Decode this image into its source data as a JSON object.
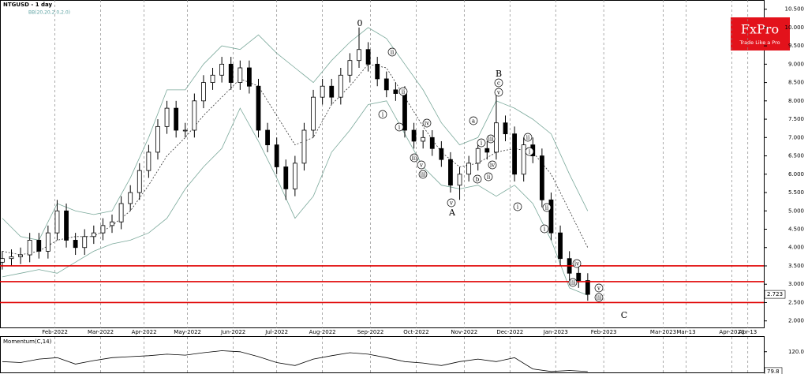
{
  "chart_data": {
    "type": "candlestick",
    "title": "NTGUSD - 1 day",
    "indicator": "BB(20,20,2.0,2.0)",
    "x": [
      1,
      5,
      9,
      13,
      17,
      21,
      25,
      29,
      33,
      37,
      41,
      45,
      49,
      53,
      57,
      61,
      65,
      69,
      73,
      77,
      81,
      85,
      89,
      93,
      97,
      101,
      105,
      109,
      113,
      117,
      121,
      125,
      129,
      133,
      137,
      141,
      145,
      149,
      153,
      157,
      161,
      165,
      169,
      173,
      177,
      181,
      185,
      189,
      193,
      197,
      201,
      205,
      209,
      213,
      217,
      221,
      225,
      229,
      233,
      237,
      241,
      245,
      249,
      253,
      257
    ],
    "open": [
      3.6,
      3.7,
      3.75,
      3.8,
      4.2,
      3.9,
      4.4,
      5.0,
      4.2,
      4.0,
      4.3,
      4.4,
      4.6,
      4.7,
      5.2,
      5.5,
      6.1,
      6.6,
      7.3,
      7.8,
      7.2,
      7.2,
      8.0,
      8.5,
      8.7,
      9.0,
      8.5,
      8.9,
      8.4,
      7.2,
      6.8,
      6.2,
      5.6,
      6.3,
      7.2,
      8.1,
      8.4,
      8.1,
      8.7,
      9.1,
      9.4,
      9.0,
      8.6,
      8.3,
      8.2,
      7.2,
      6.9,
      7.0,
      6.7,
      6.4,
      5.7,
      6.0,
      6.3,
      6.7,
      6.6,
      7.4,
      7.1,
      6.0,
      6.8,
      6.5,
      5.3,
      4.4,
      3.7,
      3.3,
      3.1
    ],
    "high": [
      3.9,
      3.95,
      4.0,
      4.4,
      4.4,
      4.6,
      5.3,
      5.2,
      4.4,
      4.5,
      4.6,
      4.8,
      4.9,
      5.4,
      5.7,
      6.3,
      6.8,
      7.5,
      8.0,
      8.0,
      7.4,
      8.2,
      8.7,
      8.9,
      9.2,
      9.2,
      9.1,
      9.1,
      8.6,
      7.4,
      7.0,
      6.4,
      6.5,
      7.4,
      8.3,
      8.6,
      8.6,
      8.9,
      9.3,
      10.0,
      9.6,
      9.2,
      8.8,
      8.5,
      8.4,
      7.4,
      7.2,
      7.2,
      6.9,
      6.6,
      6.2,
      6.5,
      6.9,
      6.9,
      8.2,
      7.6,
      7.3,
      7.0,
      7.0,
      6.7,
      5.5,
      4.6,
      3.9,
      3.5,
      3.3
    ],
    "low": [
      3.4,
      3.5,
      3.55,
      3.6,
      3.7,
      3.7,
      4.2,
      4.0,
      3.8,
      3.8,
      4.1,
      4.2,
      4.4,
      4.5,
      5.0,
      5.3,
      5.9,
      6.4,
      7.1,
      7.0,
      7.0,
      7.0,
      7.8,
      8.3,
      8.5,
      8.3,
      8.3,
      8.2,
      7.0,
      6.6,
      6.0,
      5.3,
      5.4,
      6.1,
      7.0,
      7.9,
      7.9,
      7.9,
      8.5,
      8.9,
      8.8,
      8.4,
      8.1,
      8.0,
      7.0,
      6.7,
      6.7,
      6.5,
      6.2,
      5.5,
      5.3,
      5.8,
      6.1,
      6.4,
      6.4,
      6.9,
      5.8,
      5.8,
      6.3,
      5.1,
      4.2,
      3.5,
      3.1,
      2.9,
      2.55
    ],
    "close": [
      3.7,
      3.75,
      3.8,
      4.2,
      3.9,
      4.4,
      5.0,
      4.2,
      4.0,
      4.3,
      4.4,
      4.6,
      4.7,
      5.2,
      5.5,
      6.1,
      6.6,
      7.3,
      7.8,
      7.2,
      7.2,
      8.0,
      8.5,
      8.7,
      9.0,
      8.5,
      8.9,
      8.4,
      7.2,
      6.8,
      6.2,
      5.6,
      6.3,
      7.2,
      8.1,
      8.4,
      8.1,
      8.7,
      9.1,
      9.4,
      9.0,
      8.6,
      8.3,
      8.2,
      7.2,
      6.9,
      7.0,
      6.7,
      6.4,
      5.7,
      6.0,
      6.3,
      6.7,
      6.6,
      7.4,
      7.1,
      6.0,
      6.8,
      6.5,
      5.3,
      4.4,
      3.7,
      3.3,
      3.1,
      2.723
    ],
    "bands": {
      "x": [
        1,
        9,
        17,
        25,
        33,
        41,
        49,
        57,
        65,
        73,
        81,
        89,
        97,
        105,
        113,
        121,
        129,
        137,
        145,
        153,
        161,
        169,
        177,
        185,
        193,
        201,
        209,
        217,
        225,
        233,
        241,
        249,
        257
      ],
      "upper": [
        4.8,
        4.3,
        4.2,
        5.2,
        5.0,
        4.9,
        5.0,
        5.9,
        7.0,
        8.3,
        8.3,
        9.0,
        9.5,
        9.4,
        9.8,
        9.3,
        8.9,
        8.5,
        9.1,
        9.6,
        10.0,
        9.7,
        9.0,
        8.3,
        7.4,
        6.8,
        7.0,
        8.0,
        7.8,
        7.5,
        7.1,
        6.0,
        5.0
      ],
      "middle": [
        3.9,
        3.8,
        3.9,
        4.2,
        4.3,
        4.3,
        4.6,
        5.0,
        5.7,
        6.5,
        7.0,
        7.6,
        8.1,
        8.6,
        8.4,
        7.6,
        6.8,
        7.0,
        7.9,
        8.4,
        9.0,
        8.9,
        8.1,
        7.3,
        6.6,
        6.2,
        6.3,
        6.6,
        6.7,
        6.6,
        6.0,
        5.0,
        4.0
      ],
      "lower": [
        3.2,
        3.3,
        3.4,
        3.3,
        3.6,
        3.9,
        4.1,
        4.2,
        4.4,
        4.8,
        5.6,
        6.2,
        6.7,
        7.8,
        6.9,
        5.9,
        4.8,
        5.4,
        6.6,
        7.2,
        7.9,
        8.0,
        7.1,
        6.2,
        5.7,
        5.6,
        5.7,
        5.4,
        5.7,
        5.2,
        4.2,
        2.9,
        2.7
      ]
    },
    "levels": [
      3.5,
      3.07,
      2.5
    ],
    "xlim": [
      0,
      334
    ],
    "xticks": [
      {
        "value": 24,
        "label": "Feb-2022"
      },
      {
        "value": 44,
        "label": "Mar-2022"
      },
      {
        "value": 63,
        "label": "Apr-2022"
      },
      {
        "value": 82,
        "label": "May-2022"
      },
      {
        "value": 102,
        "label": "Jun-2022"
      },
      {
        "value": 121,
        "label": "Jul-2022"
      },
      {
        "value": 141,
        "label": "Aug-2022"
      },
      {
        "value": 162,
        "label": "Sep-2022"
      },
      {
        "value": 182,
        "label": "Oct-2022"
      },
      {
        "value": 203,
        "label": "Nov-2022"
      },
      {
        "value": 223,
        "label": "Dec-2022"
      },
      {
        "value": 243,
        "label": "Jan-2023"
      },
      {
        "value": 264,
        "label": "Feb-2023"
      },
      {
        "value": 290,
        "label": "Mar-2023"
      },
      {
        "value": 300,
        "label": "Mar-13"
      },
      {
        "value": 320,
        "label": "Apr-2023"
      },
      {
        "value": 327,
        "label": "Apr-13"
      }
    ],
    "ylim": [
      1.8,
      10.75
    ],
    "yticks": [
      {
        "value": 2.0,
        "label": "2.000"
      },
      {
        "value": 2.5,
        "label": "2.500"
      },
      {
        "value": 3.0,
        "label": "3.000"
      },
      {
        "value": 3.5,
        "label": "3.500"
      },
      {
        "value": 4.0,
        "label": "4.000"
      },
      {
        "value": 4.5,
        "label": "4.500"
      },
      {
        "value": 5.0,
        "label": "5.000"
      },
      {
        "value": 5.5,
        "label": "5.500"
      },
      {
        "value": 6.0,
        "label": "6.000"
      },
      {
        "value": 6.5,
        "label": "6.500"
      },
      {
        "value": 7.0,
        "label": "7.000"
      },
      {
        "value": 7.5,
        "label": "7.500"
      },
      {
        "value": 8.0,
        "label": "8.000"
      },
      {
        "value": 8.5,
        "label": "8.500"
      },
      {
        "value": 9.0,
        "label": "9.000"
      },
      {
        "value": 9.5,
        "label": "9.500"
      },
      {
        "value": 10.0,
        "label": "10.000"
      },
      {
        "value": 10.5,
        "label": "10.500"
      }
    ],
    "momentum": {
      "title": "Momentum(C,14)",
      "x": [
        1,
        9,
        17,
        25,
        33,
        41,
        49,
        57,
        65,
        73,
        81,
        89,
        97,
        105,
        113,
        121,
        129,
        137,
        145,
        153,
        161,
        169,
        177,
        185,
        193,
        201,
        209,
        217,
        225,
        233,
        241,
        249,
        257
      ],
      "values": [
        100,
        98,
        105,
        108,
        95,
        102,
        108,
        110,
        112,
        115,
        113,
        118,
        122,
        120,
        110,
        98,
        92,
        105,
        112,
        118,
        115,
        108,
        100,
        97,
        92,
        100,
        105,
        100,
        108,
        85,
        80,
        82,
        79.8
      ],
      "ylim": [
        78,
        150
      ],
      "yticks": [
        {
          "value": 120,
          "label": "120.0"
        }
      ]
    },
    "annotations": [
      {
        "text": "0",
        "circled": false
      },
      {
        "text": "B",
        "circled": false
      },
      {
        "text": "A",
        "circled": false
      },
      {
        "text": "C",
        "circled": false
      },
      {
        "text": "c",
        "circled": true
      },
      {
        "text": "v",
        "circled": true
      },
      {
        "text": "i",
        "circled": true
      },
      {
        "text": "ii",
        "circled": true
      },
      {
        "text": "ii",
        "circled": true
      },
      {
        "text": "i",
        "circled": true
      },
      {
        "text": "iv",
        "circled": true
      },
      {
        "text": "iii",
        "circled": true
      },
      {
        "text": "v",
        "circled": true
      },
      {
        "text": "iii",
        "circled": true
      },
      {
        "text": "v",
        "circled": true
      },
      {
        "text": "a",
        "circled": true
      },
      {
        "text": "i",
        "circled": true
      },
      {
        "text": "iii",
        "circled": true
      },
      {
        "text": "iv",
        "circled": true
      },
      {
        "text": "b",
        "circled": true
      },
      {
        "text": "ii",
        "circled": true
      },
      {
        "text": "ii",
        "circled": true
      },
      {
        "text": "i",
        "circled": true
      },
      {
        "text": "i",
        "circled": true
      },
      {
        "text": "ii",
        "circled": true
      },
      {
        "text": "i",
        "circled": true
      },
      {
        "text": "iv",
        "circled": true
      },
      {
        "text": "iii",
        "circled": true
      },
      {
        "text": "v",
        "circled": true
      },
      {
        "text": "iii",
        "circled": true
      }
    ]
  },
  "brand": {
    "name": "FxPro",
    "tagline": "Trade Like a Pro"
  }
}
